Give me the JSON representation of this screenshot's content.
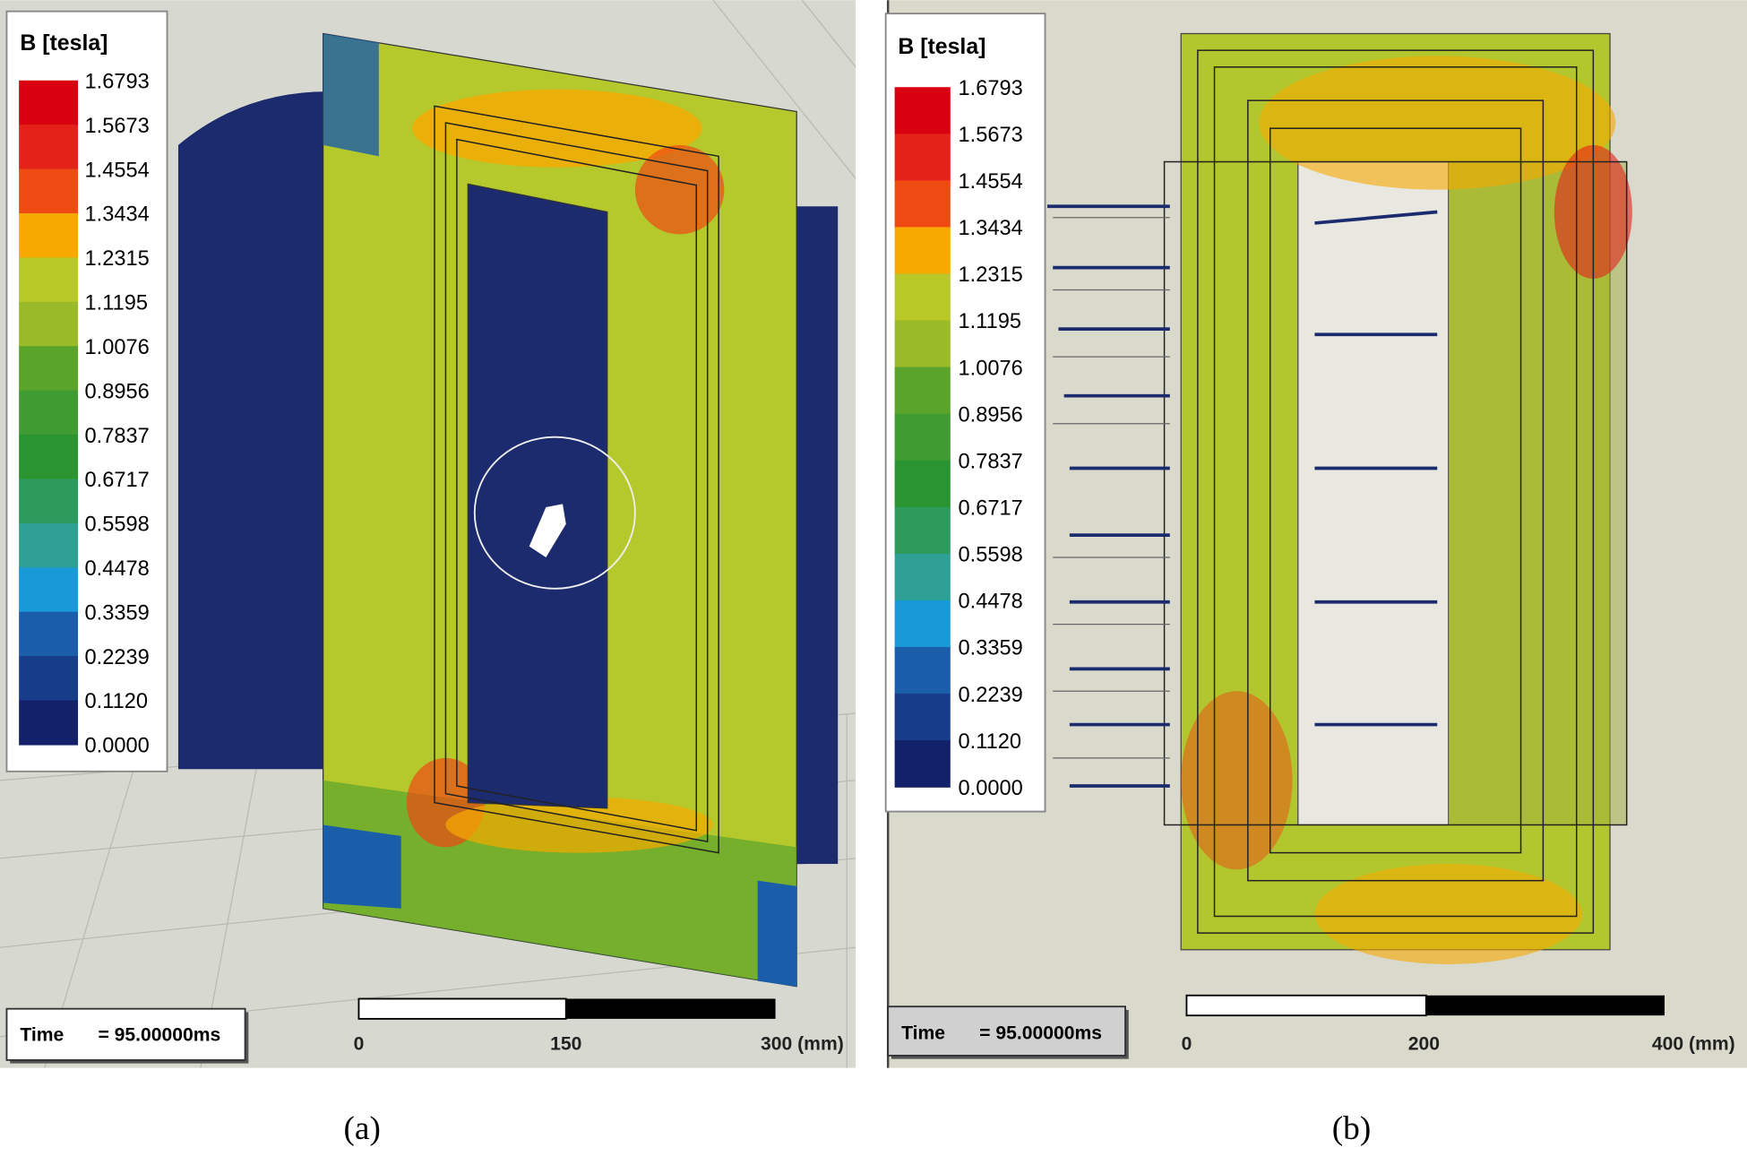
{
  "panels": [
    {
      "caption": "(a)",
      "legend": {
        "title": "B [tesla]",
        "labels": [
          "1.6793",
          "1.5673",
          "1.4554",
          "1.3434",
          "1.2315",
          "1.1195",
          "1.0076",
          "0.8956",
          "0.7837",
          "0.6717",
          "0.5598",
          "0.4478",
          "0.3359",
          "0.2239",
          "0.1120",
          "0.0000"
        ],
        "colors": [
          "#d90010",
          "#e5221a",
          "#ee4a12",
          "#f7a900",
          "#b8c826",
          "#9aba2a",
          "#5aa42b",
          "#3f9c32",
          "#2a9431",
          "#2e9a5c",
          "#2ea096",
          "#1a99d8",
          "#1a5ea9",
          "#173d8a",
          "#13216a"
        ]
      },
      "time": {
        "label": "Time",
        "value": "= 95.00000ms"
      },
      "scale_bar": {
        "labels": [
          "0",
          "150",
          "300 (mm)"
        ]
      }
    },
    {
      "caption": "(b)",
      "legend": {
        "title": "B [tesla]",
        "labels": [
          "1.6793",
          "1.5673",
          "1.4554",
          "1.3434",
          "1.2315",
          "1.1195",
          "1.0076",
          "0.8956",
          "0.7837",
          "0.6717",
          "0.5598",
          "0.4478",
          "0.3359",
          "0.2239",
          "0.1120",
          "0.0000"
        ],
        "colors": [
          "#d90010",
          "#e5221a",
          "#ee4a12",
          "#f7a900",
          "#b8c826",
          "#9aba2a",
          "#5aa42b",
          "#3f9c32",
          "#2a9431",
          "#2e9a5c",
          "#2ea096",
          "#1a99d8",
          "#1a5ea9",
          "#173d8a",
          "#13216a"
        ]
      },
      "time": {
        "label": "Time",
        "value": "= 95.00000ms"
      },
      "scale_bar": {
        "labels": [
          "0",
          "200",
          "400 (mm)"
        ]
      }
    }
  ]
}
